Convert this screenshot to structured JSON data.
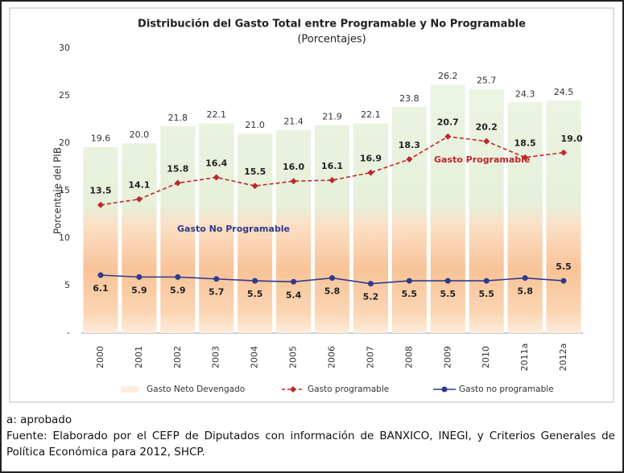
{
  "chart_data": {
    "type": "bar-line",
    "title": "Distribución del Gasto Total entre Programable y No Programable",
    "subtitle": "(Porcentajes)",
    "y_label": "Porcentaje del PIB",
    "categories": [
      "2000",
      "2001",
      "2002",
      "2003",
      "2004",
      "2005",
      "2006",
      "2007",
      "2008",
      "2009",
      "2010",
      "2011a",
      "2012a"
    ],
    "series": [
      {
        "name": "Gasto Neto Devengado",
        "kind": "bar",
        "color": "#f7c89e",
        "values": [
          19.6,
          20.0,
          21.8,
          22.1,
          21.0,
          21.4,
          21.9,
          22.1,
          23.8,
          26.2,
          25.7,
          24.3,
          24.5
        ],
        "value_labels": [
          "19.6",
          "20.0",
          "21.8",
          "22.1",
          "21.0",
          "21.4",
          "21.9",
          "22.1",
          "23.8",
          "26.2",
          "25.7",
          "24.3",
          "24.5"
        ]
      },
      {
        "name": "Gasto programable",
        "kind": "line",
        "color": "#c0272d",
        "values": [
          13.5,
          14.1,
          15.8,
          16.4,
          15.5,
          16.0,
          16.1,
          16.9,
          18.3,
          20.7,
          20.2,
          18.5,
          19.0
        ],
        "value_labels": [
          "13.5",
          "14.1",
          "15.8",
          "16.4",
          "15.5",
          "16.0",
          "16.1",
          "16.9",
          "18.3",
          "20.7",
          "20.2",
          "18.5",
          "19.0"
        ]
      },
      {
        "name": "Gasto no programable",
        "kind": "line",
        "color": "#2e3a8c",
        "values": [
          6.1,
          5.9,
          5.9,
          5.7,
          5.5,
          5.4,
          5.8,
          5.2,
          5.5,
          5.5,
          5.5,
          5.8,
          5.5
        ],
        "value_labels": [
          "6.1",
          "5.9",
          "5.9",
          "5.7",
          "5.5",
          "5.4",
          "5.8",
          "5.2",
          "5.5",
          "5.5",
          "5.5",
          "5.8",
          "5.5"
        ]
      }
    ],
    "annotations": [
      "Gasto Programable",
      "Gasto No Programable"
    ],
    "ylim": [
      0,
      30
    ],
    "yticks": [
      {
        "value": 0,
        "label": "-"
      },
      5,
      10,
      15,
      20,
      25,
      30
    ],
    "legend": "bottom"
  },
  "notes": [
    "a: aprobado",
    "Fuente: Elaborado por el CEFP de Diputados con información de BANXICO, INEGI, y Criterios Generales de Política Económica para 2012, SHCP."
  ]
}
